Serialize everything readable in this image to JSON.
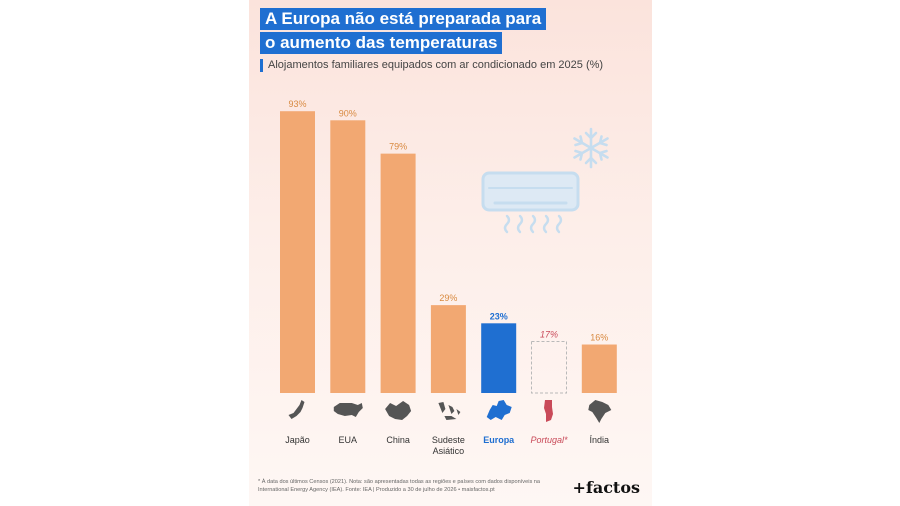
{
  "header": {
    "title_line1": "A Europa não está preparada para",
    "title_line2": "o aumento das temperaturas",
    "subtitle": "Alojamentos familiares equipados com ar condicionado em 2025 (%)"
  },
  "footer": {
    "footnote_line1": "* À data dos últimos Censos (2021). Nota: são apresentadas todas as regiões e países com dados disponíveis na",
    "footnote_line2": "International Energy Agency (IEA). Fonte: IEA | Produzido a 30 de julho de 2026 • maisfactos.pt",
    "brand": "+factos"
  },
  "colors": {
    "bar": "#f2a872",
    "highlight": "#1f6fd1",
    "portugal": "#c94a59",
    "title_bg": "#1f6fd1",
    "icon": "#c6ddef"
  },
  "icons": [
    "air-conditioner-icon",
    "snowflake-icon",
    "country-map-icons"
  ],
  "chart_data": {
    "type": "bar",
    "title": "",
    "ylabel": "",
    "ylim": [
      0,
      100
    ],
    "grid": false,
    "categories": [
      "Japão",
      "EUA",
      "China",
      "Sudeste Asiático",
      "Europa",
      "Portugal*",
      "Índia"
    ],
    "values": [
      93,
      90,
      79,
      29,
      23,
      17,
      16
    ],
    "value_labels": [
      "93%",
      "90%",
      "79%",
      "29%",
      "23%",
      "17%",
      "16%"
    ],
    "styles": [
      "normal",
      "normal",
      "normal",
      "normal",
      "highlight",
      "dashed",
      "normal"
    ]
  }
}
